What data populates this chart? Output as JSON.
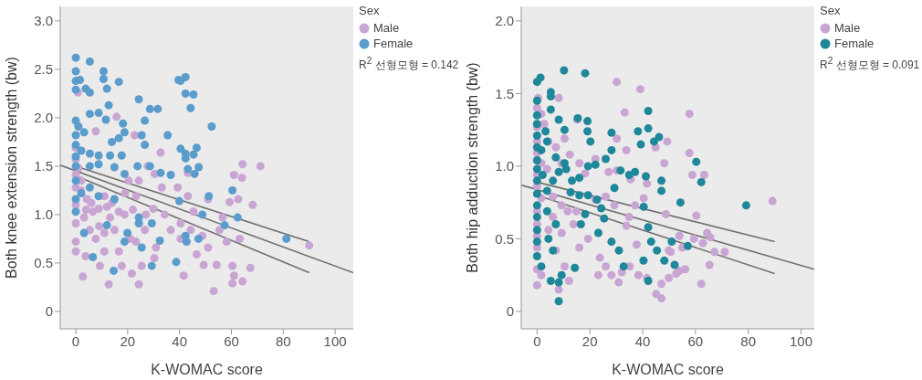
{
  "chart_data": [
    {
      "type": "scatter",
      "xlabel": "K-WOMAC score",
      "ylabel": "Both knee extension strength (bw)",
      "legend_title": "Sex",
      "legend": "top right",
      "marker": "circle",
      "annotations": [
        "R$^{2}$ 선형모형 = 0.142"
      ],
      "xlim": [
        -6,
        107
      ],
      "xticks": [
        0,
        20,
        40,
        60,
        80,
        100
      ],
      "ylim": [
        -0.18,
        3.15
      ],
      "yticks": [
        0,
        0.5,
        {
          "value": 1,
          "label": "1.0"
        },
        1.5,
        {
          "value": 2,
          "label": "2.0"
        },
        2.5,
        {
          "value": 3,
          "label": "3.0"
        }
      ],
      "series": [
        {
          "name": "Male",
          "color": "#c8a5d2",
          "x": [
            0.8,
            7.7,
            15.7,
            22.7,
            32.7,
            43.2,
            64.3,
            71.2,
            61,
            64.1,
            0,
            0,
            0,
            0,
            0,
            0,
            0,
            0,
            2.1,
            4.3,
            6.6,
            3.2,
            5.4,
            8.8,
            11,
            13.2,
            16.6,
            18.8,
            14.9,
            11,
            7.7,
            11,
            16.6,
            21,
            2.7,
            3.8,
            9.3,
            12.7,
            17.7,
            21.6,
            24.3,
            25.4,
            30.3,
            30.9,
            23.2,
            26.6,
            23.2,
            20.4,
            24.3,
            27.7,
            30.4,
            33.2,
            29.9,
            34.3,
            36.6,
            39.3,
            43.2,
            45.4,
            40.4,
            44.3,
            48.8,
            40.4,
            41.6,
            46.6,
            49.3,
            51,
            53.2,
            54.3,
            55.4,
            51,
            56.6,
            59.3,
            62.6,
            58.2,
            60.4,
            61,
            60.4,
            64.3,
            67.3,
            68.2,
            63.2,
            90,
            1,
            2,
            4,
            6,
            9,
            12,
            14,
            19,
            22,
            27
          ],
          "values": [
            2.26,
            1.86,
            2.01,
            1.82,
            1.64,
            1.43,
            1.52,
            1.5,
            1.41,
            1.38,
            1.69,
            1.57,
            1.41,
            1.28,
            1.1,
            0.91,
            0.72,
            0.62,
            1.35,
            1.16,
            1.03,
            0.97,
            0.84,
            1.06,
            1.19,
            0.97,
            1.03,
            1.0,
            0.84,
            0.81,
            0.75,
            0.62,
            0.62,
            0.75,
            0.36,
            0.57,
            0.47,
            0.28,
            0.47,
            0.39,
            0.28,
            0.47,
            0.55,
            0.66,
            0.72,
            0.84,
            1.19,
            1.35,
            1.35,
            1.5,
            1.42,
            1.28,
            1.06,
            1.0,
            0.84,
            1.28,
            1.19,
            1.03,
            0.91,
            0.84,
            0.78,
            0.75,
            0.37,
            0.59,
            0.48,
            0.66,
            0.21,
            0.48,
            0.84,
            1.16,
            0.97,
            1.13,
            1.16,
            0.72,
            0.47,
            0.37,
            0.29,
            0.31,
            0.45,
            1.1,
            0.75,
            0.68,
            1.48,
            1.25,
            1.05,
            1.12,
            0.88,
            1.08,
            1.12,
            1.22,
            1.05,
            1.0
          ]
        },
        {
          "name": "Female",
          "color": "#5a9ccb",
          "x": [
            0,
            5.4,
            10.7,
            10.7,
            12,
            16.6,
            0,
            0,
            1.6,
            0,
            3.8,
            5.4,
            24.3,
            28.6,
            31.6,
            26.6,
            39.6,
            42.3,
            40.4,
            42.3,
            45.4,
            44.3,
            52.4,
            35.4,
            40.4,
            42.3,
            42.3,
            45.4,
            46.6,
            47.4,
            45.8,
            43.2,
            26.6,
            25.4,
            11.6,
            12.7,
            8.8,
            5.4,
            18.2,
            18.8,
            13.9,
            16.6,
            0,
            1,
            0,
            3.2,
            0,
            2.1,
            5.4,
            8.8,
            13.2,
            17.7,
            0,
            0,
            5.4,
            8.8,
            14.9,
            18.8,
            23.8,
            28.6,
            32.7,
            36.6,
            0,
            0,
            0,
            2.1,
            5.4,
            8.8,
            14.9,
            12,
            3.2,
            24.3,
            24.3,
            19.9,
            18.8,
            29.3,
            32.4,
            25.4,
            29.3,
            14.6,
            6.6,
            38.7,
            42.7,
            42.3,
            51.3,
            60.4,
            62.4,
            57.4,
            47.3,
            48.8,
            39.9,
            81.2
          ],
          "values": [
            2.62,
            2.58,
            2.48,
            2.4,
            2.3,
            2.37,
            2.48,
            2.38,
            2.39,
            2.29,
            2.3,
            2.26,
            2.19,
            2.09,
            2.09,
            1.97,
            2.39,
            2.42,
            2.38,
            2.25,
            2.24,
            2.1,
            1.91,
            1.82,
            1.68,
            1.63,
            1.58,
            1.62,
            1.69,
            1.49,
            1.42,
            1.47,
            1.72,
            1.82,
            1.98,
            2.13,
            2.05,
            2.04,
            1.94,
            1.85,
            1.75,
            1.79,
            1.97,
            1.91,
            1.82,
            1.85,
            1.72,
            1.66,
            1.63,
            1.61,
            1.61,
            1.61,
            1.6,
            1.5,
            1.5,
            1.52,
            1.49,
            1.42,
            1.5,
            1.5,
            1.43,
            1.41,
            1.35,
            1.16,
            1.03,
            1.22,
            1.28,
            1.19,
            1.16,
            0.89,
            0.81,
            0.97,
            0.91,
            0.81,
            0.72,
            0.91,
            0.73,
            0.66,
            0.47,
            0.42,
            0.56,
            0.51,
            0.72,
            0.78,
            1.19,
            1.25,
            0.97,
            0.89,
            0.75,
            1.0,
            1.14,
            0.75
          ]
        },
        {
          "type": "line",
          "color": "#707070",
          "marker": "none",
          "x": [
            -6,
            107
          ],
          "values": [
            1.51,
            0.4
          ]
        },
        {
          "type": "line",
          "color": "#707070",
          "marker": "none",
          "x": [
            0,
            90
          ],
          "values": [
            1.5,
            0.72
          ]
        },
        {
          "type": "line",
          "color": "#707070",
          "marker": "none",
          "x": [
            0,
            90
          ],
          "values": [
            1.4,
            0.4
          ]
        }
      ]
    },
    {
      "type": "scatter",
      "xlabel": "K-WOMAC score",
      "ylabel": "Both hip adduction strength (bw)",
      "legend_title": "Sex",
      "legend": "top right",
      "marker": "circle",
      "annotations": [
        "R$^{2}$ 선형모형 = 0.091"
      ],
      "xlim": [
        -6,
        105
      ],
      "xticks": [
        0,
        20,
        40,
        60,
        80,
        100
      ],
      "ylim": [
        -0.12,
        2.1
      ],
      "yticks": [
        0,
        0.5,
        {
          "value": 1,
          "label": "1.0"
        },
        1.5,
        {
          "value": 2,
          "label": "2.0"
        }
      ],
      "series": [
        {
          "name": "Male",
          "color": "#c8a5d2",
          "x": [
            30.2,
            39.1,
            33.2,
            15.2,
            8.2,
            0.4,
            0,
            1.6,
            0,
            2.7,
            0,
            4.3,
            7.1,
            10.4,
            12.4,
            0,
            1.6,
            0,
            3.8,
            9.3,
            16,
            18.2,
            22.1,
            30.2,
            33.8,
            27.1,
            30.2,
            35.4,
            0,
            1.6,
            6,
            9.3,
            0,
            0,
            0,
            0,
            0,
            0,
            1.6,
            4.3,
            6,
            9.3,
            11.6,
            13.8,
            14.9,
            7.1,
            10.4,
            12.1,
            8.2,
            16,
            19.3,
            22.1,
            26,
            29.3,
            23.8,
            26,
            23.2,
            28.2,
            30.9,
            32.1,
            35.1,
            34.9,
            33.8,
            37.1,
            40.4,
            41.6,
            44.9,
            48.2,
            49.3,
            48.8,
            37.7,
            38.4,
            41.6,
            45.1,
            47.1,
            47.1,
            49.9,
            52.7,
            49.9,
            57.7,
            57.7,
            58.8,
            63.3,
            60.3,
            64.4,
            65.6,
            67.2,
            71.1,
            65.3,
            62.2,
            89.2,
            53.9,
            55,
            50.6,
            53.9,
            56.1,
            59.4,
            62.8
          ],
          "values": [
            1.58,
            1.53,
            1.37,
            1.32,
            1.47,
            1.47,
            1.4,
            1.36,
            1.27,
            1.29,
            1.17,
            1.17,
            1.13,
            1.19,
            1.08,
            1.09,
            1.02,
            0.94,
            0.98,
            1.02,
            1.02,
            0.95,
            1.05,
            1.19,
            1.11,
            0.96,
            0.97,
            0.91,
            0.86,
            0.78,
            0.79,
            0.73,
            0.69,
            0.6,
            0.52,
            0.44,
            0.29,
            0.18,
            0.25,
            0.56,
            0.65,
            0.54,
            0.69,
            0.6,
            0.69,
            0.42,
            0.31,
            0.21,
            0.15,
            0.44,
            0.5,
            0.77,
            0.79,
            0.73,
            0.37,
            0.31,
            0.25,
            0.25,
            0.2,
            0.27,
            0.31,
            0.65,
            0.59,
            0.73,
            0.78,
            0.88,
            1.13,
            1.02,
            1.17,
            0.67,
            0.46,
            0.25,
            0.23,
            0.12,
            0.09,
            0.19,
            0.23,
            0.26,
            0.42,
            1.36,
            1.09,
            0.94,
            0.94,
            0.66,
            0.54,
            0.51,
            0.41,
            0.41,
            0.32,
            0.19,
            0.76,
            0.52,
            0.44,
            0.41,
            0.28,
            0.29,
            0.5,
            0.47
          ]
        },
        {
          "name": "Female",
          "color": "#1e8799",
          "x": [
            0,
            1.3,
            10.2,
            18.2,
            5.2,
            5.2,
            0,
            5.2,
            0,
            0,
            3.2,
            8.2,
            10.4,
            15.4,
            19.1,
            19.1,
            20.2,
            0,
            0,
            1.6,
            3.8,
            7.1,
            10.4,
            0,
            0,
            0,
            2.1,
            6,
            8.2,
            11,
            13.2,
            16,
            19.3,
            22.1,
            0,
            3.8,
            12.7,
            16,
            19.3,
            22.7,
            24.3,
            0,
            0,
            0,
            3.8,
            7.1,
            0,
            4.3,
            6,
            0,
            1.6,
            5.2,
            8.2,
            9.3,
            8.2,
            14.3,
            16.6,
            18.2,
            23.2,
            25.4,
            28.2,
            31,
            32.8,
            28.2,
            28.2,
            26,
            29.3,
            31.6,
            34.9,
            37.1,
            38.2,
            39.3,
            42.1,
            42.1,
            44.3,
            46.2,
            41.2,
            40.4,
            42.1,
            43.2,
            45.4,
            40.3,
            42.1,
            47.1,
            47.1,
            48.2,
            52.1,
            54.3,
            57.1,
            51,
            60.3,
            62.2,
            79.2
          ],
          "values": [
            1.58,
            1.61,
            1.66,
            1.64,
            1.51,
            1.48,
            1.45,
            1.39,
            1.35,
            1.29,
            1.24,
            1.32,
            1.25,
            1.33,
            1.31,
            1.24,
            1.17,
            1.21,
            1.13,
            1.11,
            1.17,
            1.06,
            1.02,
            1.04,
            0.98,
            0.9,
            0.94,
            0.9,
            0.96,
            0.98,
            0.9,
            0.92,
            1.0,
            1.01,
            0.81,
            0.83,
            0.82,
            0.8,
            0.8,
            0.77,
            0.71,
            0.73,
            0.65,
            0.56,
            0.69,
            0.6,
            0.48,
            0.5,
            0.42,
            0.38,
            0.31,
            0.21,
            0.2,
            0.25,
            0.07,
            0.3,
            0.6,
            0.67,
            0.54,
            0.64,
            0.48,
            0.42,
            0.31,
            1.23,
            1.11,
            1.05,
            0.85,
            0.97,
            0.94,
            0.96,
            1.24,
            1.15,
            1.26,
            1.38,
            1.17,
            1.2,
            0.93,
            0.72,
            0.58,
            0.48,
            0.42,
            0.35,
            0.21,
            0.9,
            0.83,
            0.35,
            0.32,
            0.75,
            0.45,
            0.48,
            1.03,
            0.89,
            0.73
          ]
        },
        {
          "type": "line",
          "color": "#707070",
          "marker": "none",
          "x": [
            -6,
            105
          ],
          "values": [
            0.87,
            0.29
          ]
        },
        {
          "type": "line",
          "color": "#707070",
          "marker": "none",
          "x": [
            0,
            90
          ],
          "values": [
            0.89,
            0.48
          ]
        },
        {
          "type": "line",
          "color": "#707070",
          "marker": "none",
          "x": [
            0,
            90
          ],
          "values": [
            0.8,
            0.26
          ]
        }
      ]
    }
  ]
}
